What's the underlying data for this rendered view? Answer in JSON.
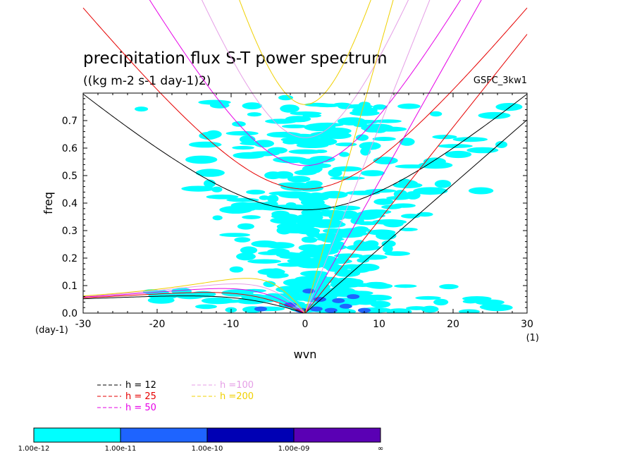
{
  "chart_data": {
    "type": "contour",
    "title": "precipitation flux S-T power spectrum",
    "subtitle": "((kg m-2 s-1 day-1)2)",
    "tag": "GSFC_3kw1",
    "xlabel": "wvn",
    "ylabel": "freq",
    "x_unit": "(1)",
    "y_unit": "(day-1)",
    "xlim": [
      -30,
      30
    ],
    "ylim": [
      0,
      0.8
    ],
    "xticks": [
      "-30",
      "-20",
      "-10",
      "0",
      "10",
      "20",
      "30"
    ],
    "yticks": [
      "0.0",
      "0.1",
      "0.2",
      "0.3",
      "0.4",
      "0.5",
      "0.6",
      "0.7"
    ],
    "dispersion_curves": [
      {
        "name": "h = 12",
        "h": 12,
        "color": "#000000"
      },
      {
        "name": "h = 25",
        "h": 25,
        "color": "#e60000"
      },
      {
        "name": "h = 50",
        "h": 50,
        "color": "#e600e6"
      },
      {
        "name": "h =100",
        "h": 100,
        "color": "#e59ee6"
      },
      {
        "name": "h =200",
        "h": 200,
        "color": "#f0d000"
      }
    ],
    "colorbar": {
      "labels": [
        "1.00e-12",
        "1.00e-11",
        "1.00e-10",
        "1.00e-09",
        "∞"
      ],
      "colors": [
        "#00ffff",
        "#1e64ff",
        "#0000b4",
        "#5a00b4"
      ]
    }
  }
}
